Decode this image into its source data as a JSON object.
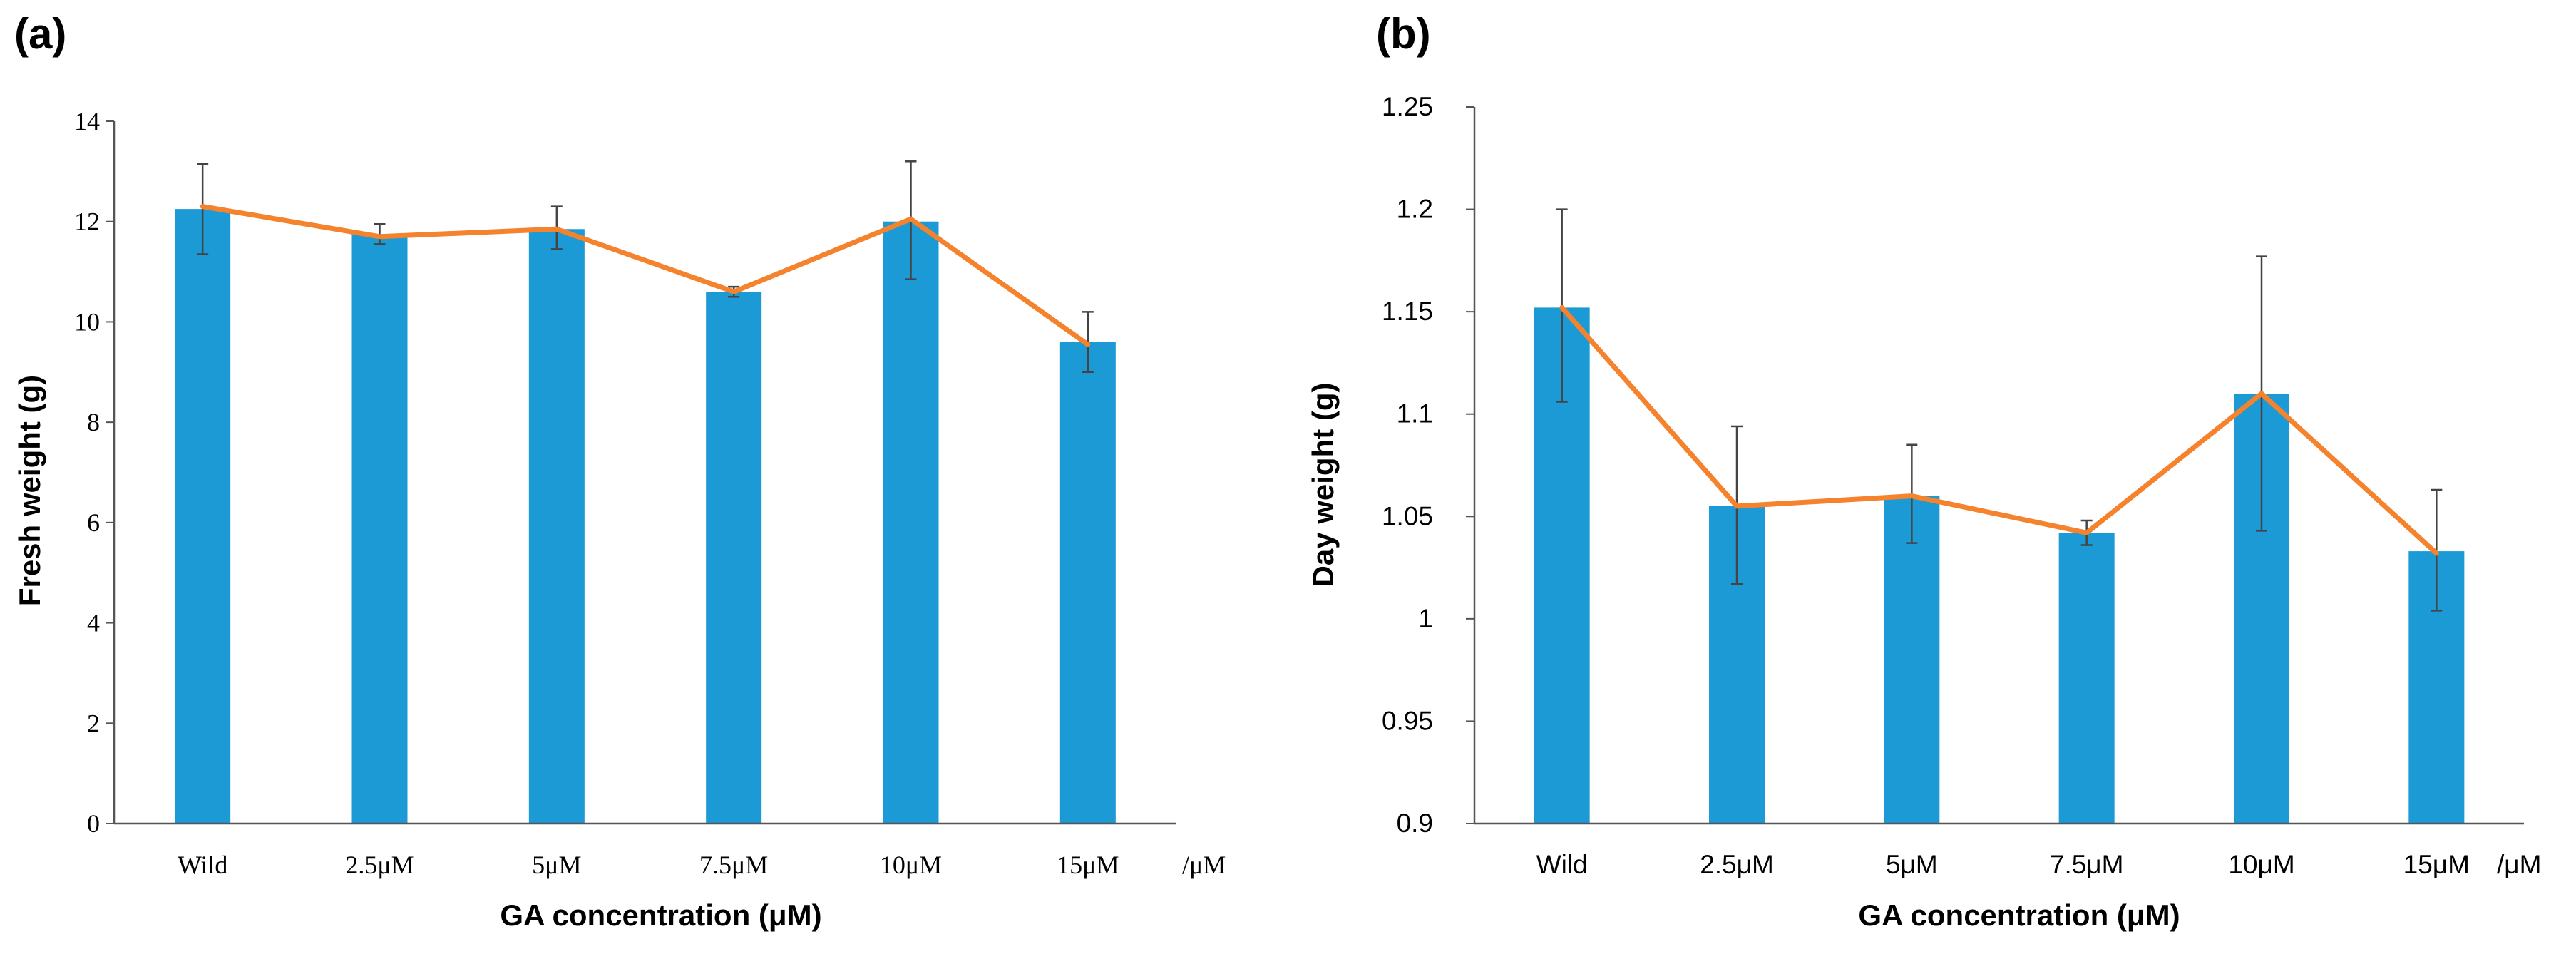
{
  "colors": {
    "bar": "#1b9ad6",
    "line": "#f5822c",
    "error_bar": "#444444",
    "axis": "#555555"
  },
  "chart_data": [
    {
      "panel_label": "(a)",
      "type": "bar",
      "overlay": "line",
      "categories": [
        "Wild",
        "2.5μM",
        "5μM",
        "7.5μM",
        "10μM",
        "15μM"
      ],
      "unit_suffix": "/μM",
      "values": [
        12.25,
        11.75,
        11.85,
        10.6,
        12.0,
        9.6
      ],
      "line_values": [
        12.3,
        11.7,
        11.85,
        10.6,
        12.05,
        9.55
      ],
      "error_low": [
        11.35,
        11.55,
        11.45,
        10.5,
        10.85,
        9.0
      ],
      "error_high": [
        13.15,
        11.95,
        12.3,
        10.7,
        13.2,
        10.2
      ],
      "xlabel": "GA concentration (μM)",
      "ylabel": "Fresh weight (g)",
      "ylim": [
        0,
        14
      ],
      "yticks": [
        "0",
        "2",
        "4",
        "6",
        "8",
        "10",
        "12",
        "14"
      ]
    },
    {
      "panel_label": "(b)",
      "type": "bar",
      "overlay": "line",
      "categories": [
        "Wild",
        "2.5μM",
        "5μM",
        "7.5μM",
        "10μM",
        "15μM"
      ],
      "unit_suffix": "/μM",
      "values": [
        1.152,
        1.055,
        1.06,
        1.042,
        1.11,
        1.033
      ],
      "line_values": [
        1.152,
        1.055,
        1.06,
        1.042,
        1.11,
        1.032
      ],
      "error_low": [
        1.106,
        1.017,
        1.037,
        1.036,
        1.043,
        1.004
      ],
      "error_high": [
        1.2,
        1.094,
        1.085,
        1.048,
        1.177,
        1.063
      ],
      "xlabel": "GA concentration (μM)",
      "ylabel": "Day weight (g)",
      "ylim": [
        0.9,
        1.25
      ],
      "yticks": [
        "0.9",
        "0.95",
        "1",
        "1.05",
        "1.1",
        "1.15",
        "1.2",
        "1.25"
      ]
    }
  ]
}
